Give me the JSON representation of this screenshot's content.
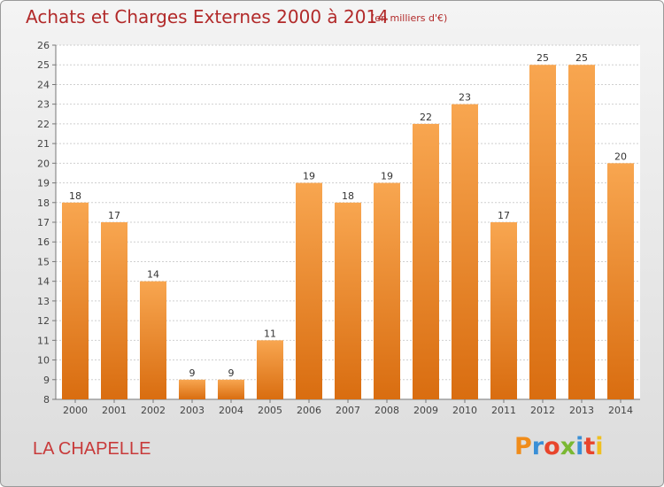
{
  "header": {
    "title": "Achats et Charges Externes 2000 à 2014",
    "subtitle": "(en milliers d'€)"
  },
  "footer": {
    "commune": "LA CHAPELLE",
    "logo_text": "Proxiti",
    "logo_colors": [
      "#f08c1a",
      "#3a8fd6",
      "#e8452c",
      "#7ab832",
      "#3a8fd6",
      "#e8452c",
      "#f0c020"
    ]
  },
  "colors": {
    "bar_top": "#f8a650",
    "bar_bottom": "#d96d10",
    "title": "#b22a2a"
  },
  "chart_data": {
    "type": "bar",
    "categories": [
      "2000",
      "2001",
      "2002",
      "2003",
      "2004",
      "2005",
      "2006",
      "2007",
      "2008",
      "2009",
      "2010",
      "2011",
      "2012",
      "2013",
      "2014"
    ],
    "values": [
      18,
      17,
      14,
      9,
      9,
      11,
      19,
      18,
      19,
      22,
      23,
      17,
      25,
      25,
      20
    ],
    "ylim": [
      8,
      26
    ],
    "yticks": [
      8,
      9,
      10,
      11,
      12,
      13,
      14,
      15,
      16,
      17,
      18,
      19,
      20,
      21,
      22,
      23,
      24,
      25,
      26
    ],
    "grid": true
  }
}
